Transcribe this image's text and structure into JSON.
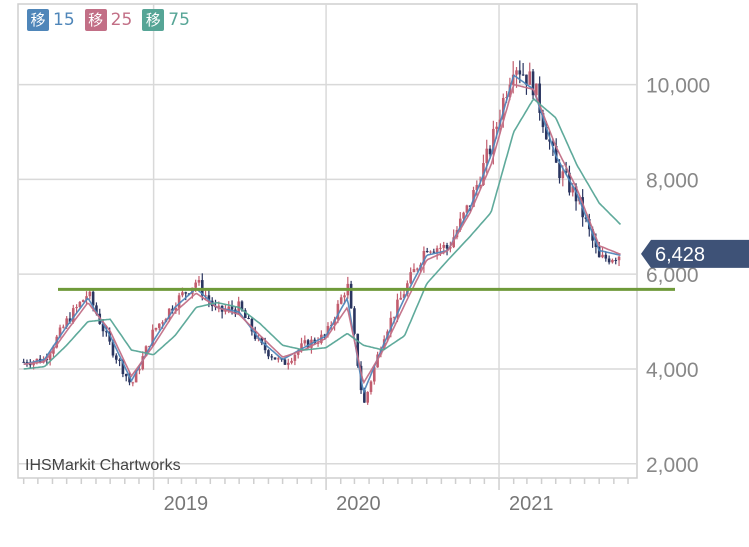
{
  "legend": [
    {
      "badge": "移",
      "period": "15",
      "color": "#4f86b9"
    },
    {
      "badge": "移",
      "period": "25",
      "color": "#c26f86"
    },
    {
      "badge": "移",
      "period": "75",
      "color": "#56a596"
    }
  ],
  "watermark": "IHSMarkit Chartworks",
  "last_price_label": "6,428",
  "colors": {
    "candle": "#2a3560",
    "candle_up": "#c25d6e",
    "ma15": "#4f86b9",
    "ma25": "#c26f86",
    "ma75": "#56a596",
    "support_line": "#6f9a3a",
    "last_badge": "#3e5277",
    "grid": "#d9d9d9"
  },
  "chart_data": {
    "type": "line",
    "title": "",
    "xlabel": "",
    "ylabel": "",
    "x_ticks": [
      "2019",
      "2020",
      "2021"
    ],
    "y_ticks": [
      "2,000",
      "4,000",
      "6,000",
      "8,000",
      "10,000"
    ],
    "y_tick_values": [
      2000,
      4000,
      6000,
      8000,
      10000
    ],
    "ylim": [
      1700,
      11700
    ],
    "xlim": [
      "2018-03-20",
      "2021-10-20"
    ],
    "grid": true,
    "support_level": 5680,
    "last_price": 6428,
    "x": [
      "2018-04-01",
      "2018-05-15",
      "2018-07-01",
      "2018-08-15",
      "2018-10-01",
      "2018-11-15",
      "2019-01-01",
      "2019-02-15",
      "2019-04-01",
      "2019-05-15",
      "2019-07-01",
      "2019-08-15",
      "2019-10-01",
      "2019-11-15",
      "2020-01-01",
      "2020-02-15",
      "2020-03-20",
      "2020-05-01",
      "2020-06-15",
      "2020-08-01",
      "2020-09-15",
      "2020-11-01",
      "2020-12-15",
      "2021-02-01",
      "2021-03-15",
      "2021-05-01",
      "2021-06-15",
      "2021-08-01",
      "2021-09-15"
    ],
    "series": [
      {
        "name": "",
        "kind": "price",
        "values": [
          4150,
          4200,
          5000,
          5600,
          4500,
          3650,
          4800,
          5400,
          5850,
          5200,
          5300,
          4500,
          4100,
          4500,
          4700,
          5800,
          3200,
          4700,
          5650,
          6600,
          6550,
          7500,
          8700,
          10500,
          10000,
          8300,
          7600,
          6300,
          6428
        ]
      },
      {
        "name": "15",
        "kind": "ma15",
        "values": [
          4100,
          4200,
          4900,
          5500,
          4700,
          3750,
          4600,
          5300,
          5700,
          5300,
          5200,
          4600,
          4200,
          4450,
          4700,
          5500,
          3500,
          4500,
          5500,
          6400,
          6500,
          7400,
          8500,
          10200,
          9900,
          8500,
          7700,
          6500,
          6400
        ]
      },
      {
        "name": "25",
        "kind": "ma25",
        "values": [
          4100,
          4150,
          4800,
          5400,
          4800,
          3850,
          4500,
          5200,
          5600,
          5300,
          5150,
          4700,
          4250,
          4400,
          4650,
          5300,
          3700,
          4400,
          5350,
          6300,
          6500,
          7300,
          8300,
          10000,
          9900,
          8700,
          7800,
          6600,
          6420
        ]
      },
      {
        "name": "75",
        "kind": "ma75",
        "values": [
          4000,
          4050,
          4500,
          5000,
          5050,
          4400,
          4300,
          4700,
          5300,
          5400,
          5300,
          4950,
          4500,
          4400,
          4450,
          4750,
          4500,
          4400,
          4700,
          5800,
          6300,
          6800,
          7300,
          9000,
          9700,
          9300,
          8300,
          7500,
          7050
        ]
      }
    ]
  }
}
